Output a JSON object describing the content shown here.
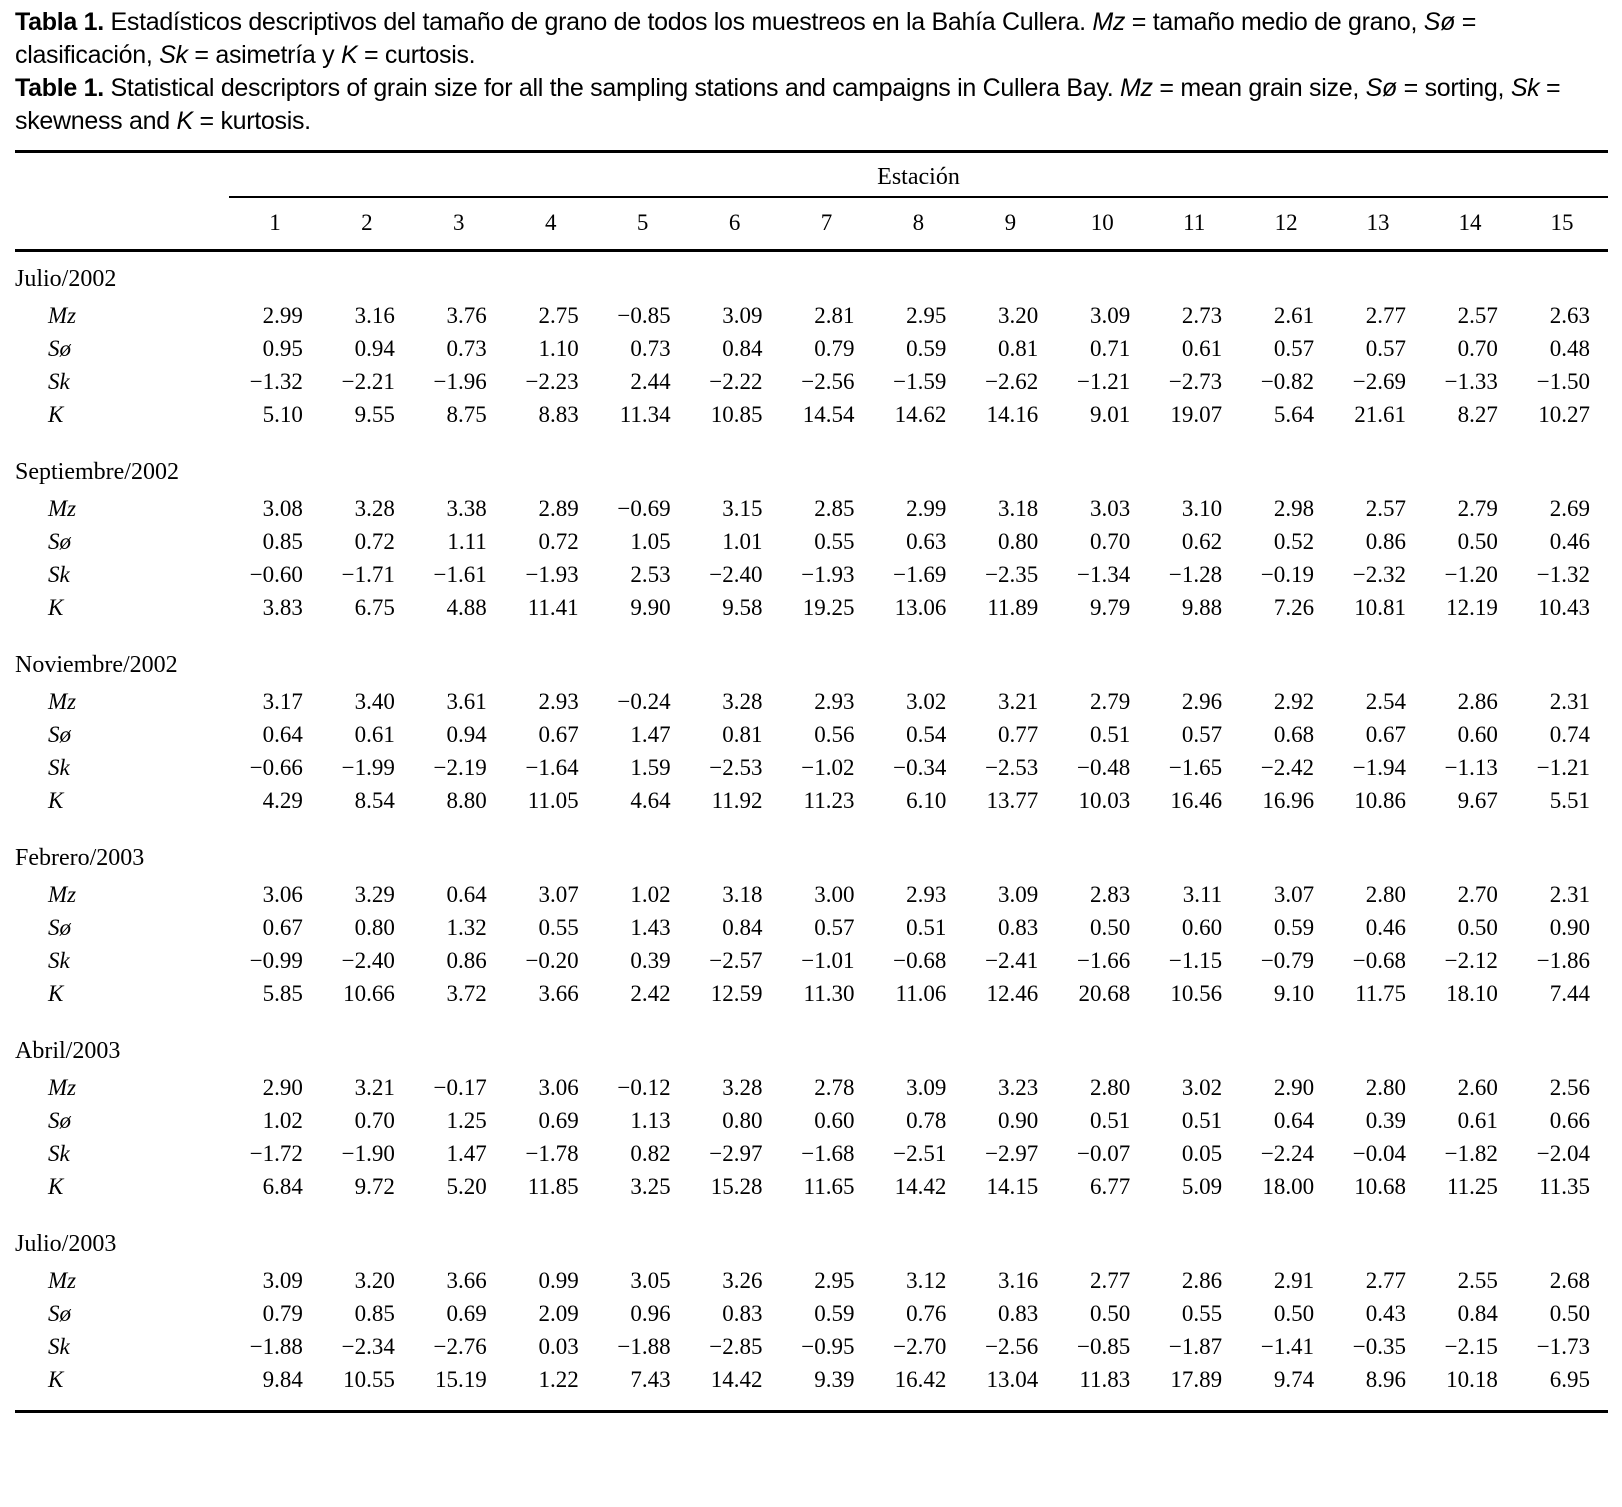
{
  "captions": {
    "es": [
      {
        "s": "b",
        "t": "Tabla 1."
      },
      {
        "s": "n",
        "t": " Estadísticos descriptivos del tamaño de grano de todos los muestreos en la Bahía Cullera. "
      },
      {
        "s": "i",
        "t": "Mz"
      },
      {
        "s": "n",
        "t": " = tamaño medio de grano, "
      },
      {
        "s": "i",
        "t": "Sø"
      },
      {
        "s": "n",
        "t": " = clasificación, "
      },
      {
        "s": "i",
        "t": "Sk"
      },
      {
        "s": "n",
        "t": " = asimetría y "
      },
      {
        "s": "i",
        "t": "K"
      },
      {
        "s": "n",
        "t": " = curtosis."
      }
    ],
    "en": [
      {
        "s": "b",
        "t": "Table 1."
      },
      {
        "s": "n",
        "t": " Statistical descriptors of grain size for all the sampling stations and campaigns in Cullera Bay. "
      },
      {
        "s": "i",
        "t": "Mz"
      },
      {
        "s": "n",
        "t": " = mean grain size, "
      },
      {
        "s": "i",
        "t": "Sø"
      },
      {
        "s": "n",
        "t": " = sorting, "
      },
      {
        "s": "i",
        "t": "Sk"
      },
      {
        "s": "n",
        "t": " = skewness and "
      },
      {
        "s": "i",
        "t": "K"
      },
      {
        "s": "n",
        "t": " = kurtosis."
      }
    ]
  },
  "table": {
    "group_header": "Estación",
    "stations": [
      "1",
      "2",
      "3",
      "4",
      "5",
      "6",
      "7",
      "8",
      "9",
      "10",
      "11",
      "12",
      "13",
      "14",
      "15"
    ],
    "row_labels": [
      "Mz",
      "Sø",
      "Sk",
      "K"
    ],
    "sections": [
      {
        "name": "Julio/2002",
        "rows": [
          {
            "label": "Mz",
            "values": [
              "2.99",
              "3.16",
              "3.76",
              "2.75",
              "−0.85",
              "3.09",
              "2.81",
              "2.95",
              "3.20",
              "3.09",
              "2.73",
              "2.61",
              "2.77",
              "2.57",
              "2.63"
            ]
          },
          {
            "label": "Sø",
            "values": [
              "0.95",
              "0.94",
              "0.73",
              "1.10",
              "0.73",
              "0.84",
              "0.79",
              "0.59",
              "0.81",
              "0.71",
              "0.61",
              "0.57",
              "0.57",
              "0.70",
              "0.48"
            ]
          },
          {
            "label": "Sk",
            "values": [
              "−1.32",
              "−2.21",
              "−1.96",
              "−2.23",
              "2.44",
              "−2.22",
              "−2.56",
              "−1.59",
              "−2.62",
              "−1.21",
              "−2.73",
              "−0.82",
              "−2.69",
              "−1.33",
              "−1.50"
            ]
          },
          {
            "label": "K",
            "values": [
              "5.10",
              "9.55",
              "8.75",
              "8.83",
              "11.34",
              "10.85",
              "14.54",
              "14.62",
              "14.16",
              "9.01",
              "19.07",
              "5.64",
              "21.61",
              "8.27",
              "10.27"
            ]
          }
        ]
      },
      {
        "name": "Septiembre/2002",
        "rows": [
          {
            "label": "Mz",
            "values": [
              "3.08",
              "3.28",
              "3.38",
              "2.89",
              "−0.69",
              "3.15",
              "2.85",
              "2.99",
              "3.18",
              "3.03",
              "3.10",
              "2.98",
              "2.57",
              "2.79",
              "2.69"
            ]
          },
          {
            "label": "Sø",
            "values": [
              "0.85",
              "0.72",
              "1.11",
              "0.72",
              "1.05",
              "1.01",
              "0.55",
              "0.63",
              "0.80",
              "0.70",
              "0.62",
              "0.52",
              "0.86",
              "0.50",
              "0.46"
            ]
          },
          {
            "label": "Sk",
            "values": [
              "−0.60",
              "−1.71",
              "−1.61",
              "−1.93",
              "2.53",
              "−2.40",
              "−1.93",
              "−1.69",
              "−2.35",
              "−1.34",
              "−1.28",
              "−0.19",
              "−2.32",
              "−1.20",
              "−1.32"
            ]
          },
          {
            "label": "K",
            "values": [
              "3.83",
              "6.75",
              "4.88",
              "11.41",
              "9.90",
              "9.58",
              "19.25",
              "13.06",
              "11.89",
              "9.79",
              "9.88",
              "7.26",
              "10.81",
              "12.19",
              "10.43"
            ]
          }
        ]
      },
      {
        "name": "Noviembre/2002",
        "rows": [
          {
            "label": "Mz",
            "values": [
              "3.17",
              "3.40",
              "3.61",
              "2.93",
              "−0.24",
              "3.28",
              "2.93",
              "3.02",
              "3.21",
              "2.79",
              "2.96",
              "2.92",
              "2.54",
              "2.86",
              "2.31"
            ]
          },
          {
            "label": "Sø",
            "values": [
              "0.64",
              "0.61",
              "0.94",
              "0.67",
              "1.47",
              "0.81",
              "0.56",
              "0.54",
              "0.77",
              "0.51",
              "0.57",
              "0.68",
              "0.67",
              "0.60",
              "0.74"
            ]
          },
          {
            "label": "Sk",
            "values": [
              "−0.66",
              "−1.99",
              "−2.19",
              "−1.64",
              "1.59",
              "−2.53",
              "−1.02",
              "−0.34",
              "−2.53",
              "−0.48",
              "−1.65",
              "−2.42",
              "−1.94",
              "−1.13",
              "−1.21"
            ]
          },
          {
            "label": "K",
            "values": [
              "4.29",
              "8.54",
              "8.80",
              "11.05",
              "4.64",
              "11.92",
              "11.23",
              "6.10",
              "13.77",
              "10.03",
              "16.46",
              "16.96",
              "10.86",
              "9.67",
              "5.51"
            ]
          }
        ]
      },
      {
        "name": "Febrero/2003",
        "rows": [
          {
            "label": "Mz",
            "values": [
              "3.06",
              "3.29",
              "0.64",
              "3.07",
              "1.02",
              "3.18",
              "3.00",
              "2.93",
              "3.09",
              "2.83",
              "3.11",
              "3.07",
              "2.80",
              "2.70",
              "2.31"
            ]
          },
          {
            "label": "Sø",
            "values": [
              "0.67",
              "0.80",
              "1.32",
              "0.55",
              "1.43",
              "0.84",
              "0.57",
              "0.51",
              "0.83",
              "0.50",
              "0.60",
              "0.59",
              "0.46",
              "0.50",
              "0.90"
            ]
          },
          {
            "label": "Sk",
            "values": [
              "−0.99",
              "−2.40",
              "0.86",
              "−0.20",
              "0.39",
              "−2.57",
              "−1.01",
              "−0.68",
              "−2.41",
              "−1.66",
              "−1.15",
              "−0.79",
              "−0.68",
              "−2.12",
              "−1.86"
            ]
          },
          {
            "label": "K",
            "values": [
              "5.85",
              "10.66",
              "3.72",
              "3.66",
              "2.42",
              "12.59",
              "11.30",
              "11.06",
              "12.46",
              "20.68",
              "10.56",
              "9.10",
              "11.75",
              "18.10",
              "7.44"
            ]
          }
        ]
      },
      {
        "name": "Abril/2003",
        "rows": [
          {
            "label": "Mz",
            "values": [
              "2.90",
              "3.21",
              "−0.17",
              "3.06",
              "−0.12",
              "3.28",
              "2.78",
              "3.09",
              "3.23",
              "2.80",
              "3.02",
              "2.90",
              "2.80",
              "2.60",
              "2.56"
            ]
          },
          {
            "label": "Sø",
            "values": [
              "1.02",
              "0.70",
              "1.25",
              "0.69",
              "1.13",
              "0.80",
              "0.60",
              "0.78",
              "0.90",
              "0.51",
              "0.51",
              "0.64",
              "0.39",
              "0.61",
              "0.66"
            ]
          },
          {
            "label": "Sk",
            "values": [
              "−1.72",
              "−1.90",
              "1.47",
              "−1.78",
              "0.82",
              "−2.97",
              "−1.68",
              "−2.51",
              "−2.97",
              "−0.07",
              "0.05",
              "−2.24",
              "−0.04",
              "−1.82",
              "−2.04"
            ]
          },
          {
            "label": "K",
            "values": [
              "6.84",
              "9.72",
              "5.20",
              "11.85",
              "3.25",
              "15.28",
              "11.65",
              "14.42",
              "14.15",
              "6.77",
              "5.09",
              "18.00",
              "10.68",
              "11.25",
              "11.35"
            ]
          }
        ]
      },
      {
        "name": "Julio/2003",
        "rows": [
          {
            "label": "Mz",
            "values": [
              "3.09",
              "3.20",
              "3.66",
              "0.99",
              "3.05",
              "3.26",
              "2.95",
              "3.12",
              "3.16",
              "2.77",
              "2.86",
              "2.91",
              "2.77",
              "2.55",
              "2.68"
            ]
          },
          {
            "label": "Sø",
            "values": [
              "0.79",
              "0.85",
              "0.69",
              "2.09",
              "0.96",
              "0.83",
              "0.59",
              "0.76",
              "0.83",
              "0.50",
              "0.55",
              "0.50",
              "0.43",
              "0.84",
              "0.50"
            ]
          },
          {
            "label": "Sk",
            "values": [
              "−1.88",
              "−2.34",
              "−2.76",
              "0.03",
              "−1.88",
              "−2.85",
              "−0.95",
              "−2.70",
              "−2.56",
              "−0.85",
              "−1.87",
              "−1.41",
              "−0.35",
              "−2.15",
              "−1.73"
            ]
          },
          {
            "label": "K",
            "values": [
              "9.84",
              "10.55",
              "15.19",
              "1.22",
              "7.43",
              "14.42",
              "9.39",
              "16.42",
              "13.04",
              "11.83",
              "17.89",
              "9.74",
              "8.96",
              "10.18",
              "6.95"
            ]
          }
        ]
      }
    ]
  },
  "colors": {
    "text": "#000000",
    "background": "#ffffff",
    "rule": "#000000"
  }
}
